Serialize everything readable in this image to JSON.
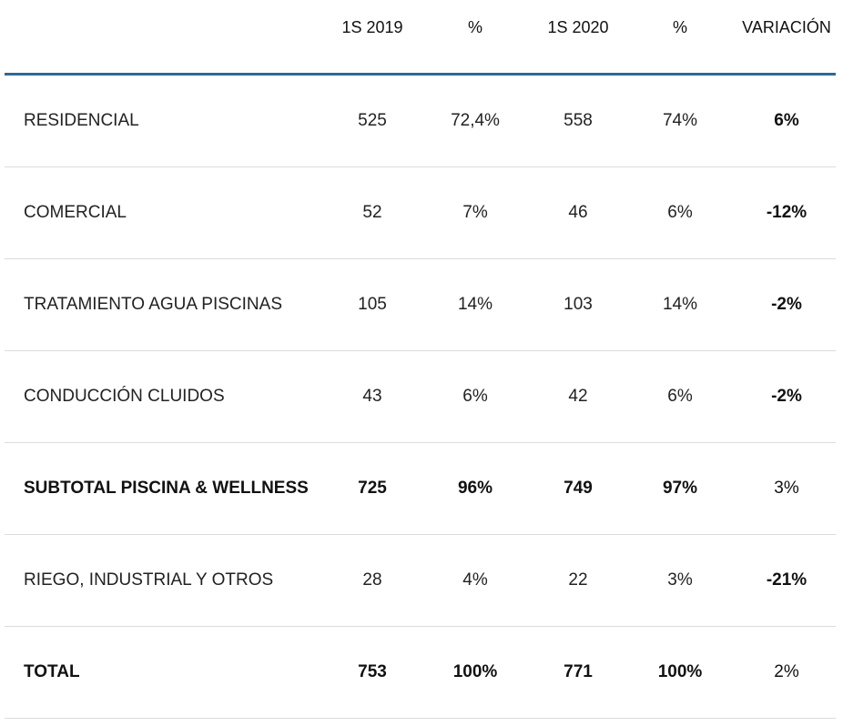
{
  "table": {
    "headers": [
      "",
      "1S 2019",
      "%",
      "1S 2020",
      "%",
      "VARIACIÓN"
    ],
    "rows": [
      {
        "label": "RESIDENCIAL",
        "v2019": "525",
        "p2019": "72,4%",
        "v2020": "558",
        "p2020": "74%",
        "variacion": "6%",
        "emphasis": false
      },
      {
        "label": "COMERCIAL",
        "v2019": "52",
        "p2019": "7%",
        "v2020": "46",
        "p2020": "6%",
        "variacion": "-12%",
        "emphasis": false
      },
      {
        "label": "TRATAMIENTO AGUA PISCINAS",
        "v2019": "105",
        "p2019": "14%",
        "v2020": "103",
        "p2020": "14%",
        "variacion": "-2%",
        "emphasis": false
      },
      {
        "label": "CONDUCCIÓN CLUIDOS",
        "v2019": "43",
        "p2019": "6%",
        "v2020": "42",
        "p2020": "6%",
        "variacion": "-2%",
        "emphasis": false
      },
      {
        "label": "SUBTOTAL PISCINA & WELLNESS",
        "v2019": "725",
        "p2019": "96%",
        "v2020": "749",
        "p2020": "97%",
        "variacion": "3%",
        "emphasis": true
      },
      {
        "label": "RIEGO, INDUSTRIAL Y OTROS",
        "v2019": "28",
        "p2019": "4%",
        "v2020": "22",
        "p2020": "3%",
        "variacion": "-21%",
        "emphasis": false
      },
      {
        "label": "TOTAL",
        "v2019": "753",
        "p2019": "100%",
        "v2020": "771",
        "p2020": "100%",
        "variacion": "2%",
        "emphasis": true
      }
    ]
  },
  "colors": {
    "header_rule": "#2e6a96",
    "row_divider": "#dcdcdc"
  }
}
